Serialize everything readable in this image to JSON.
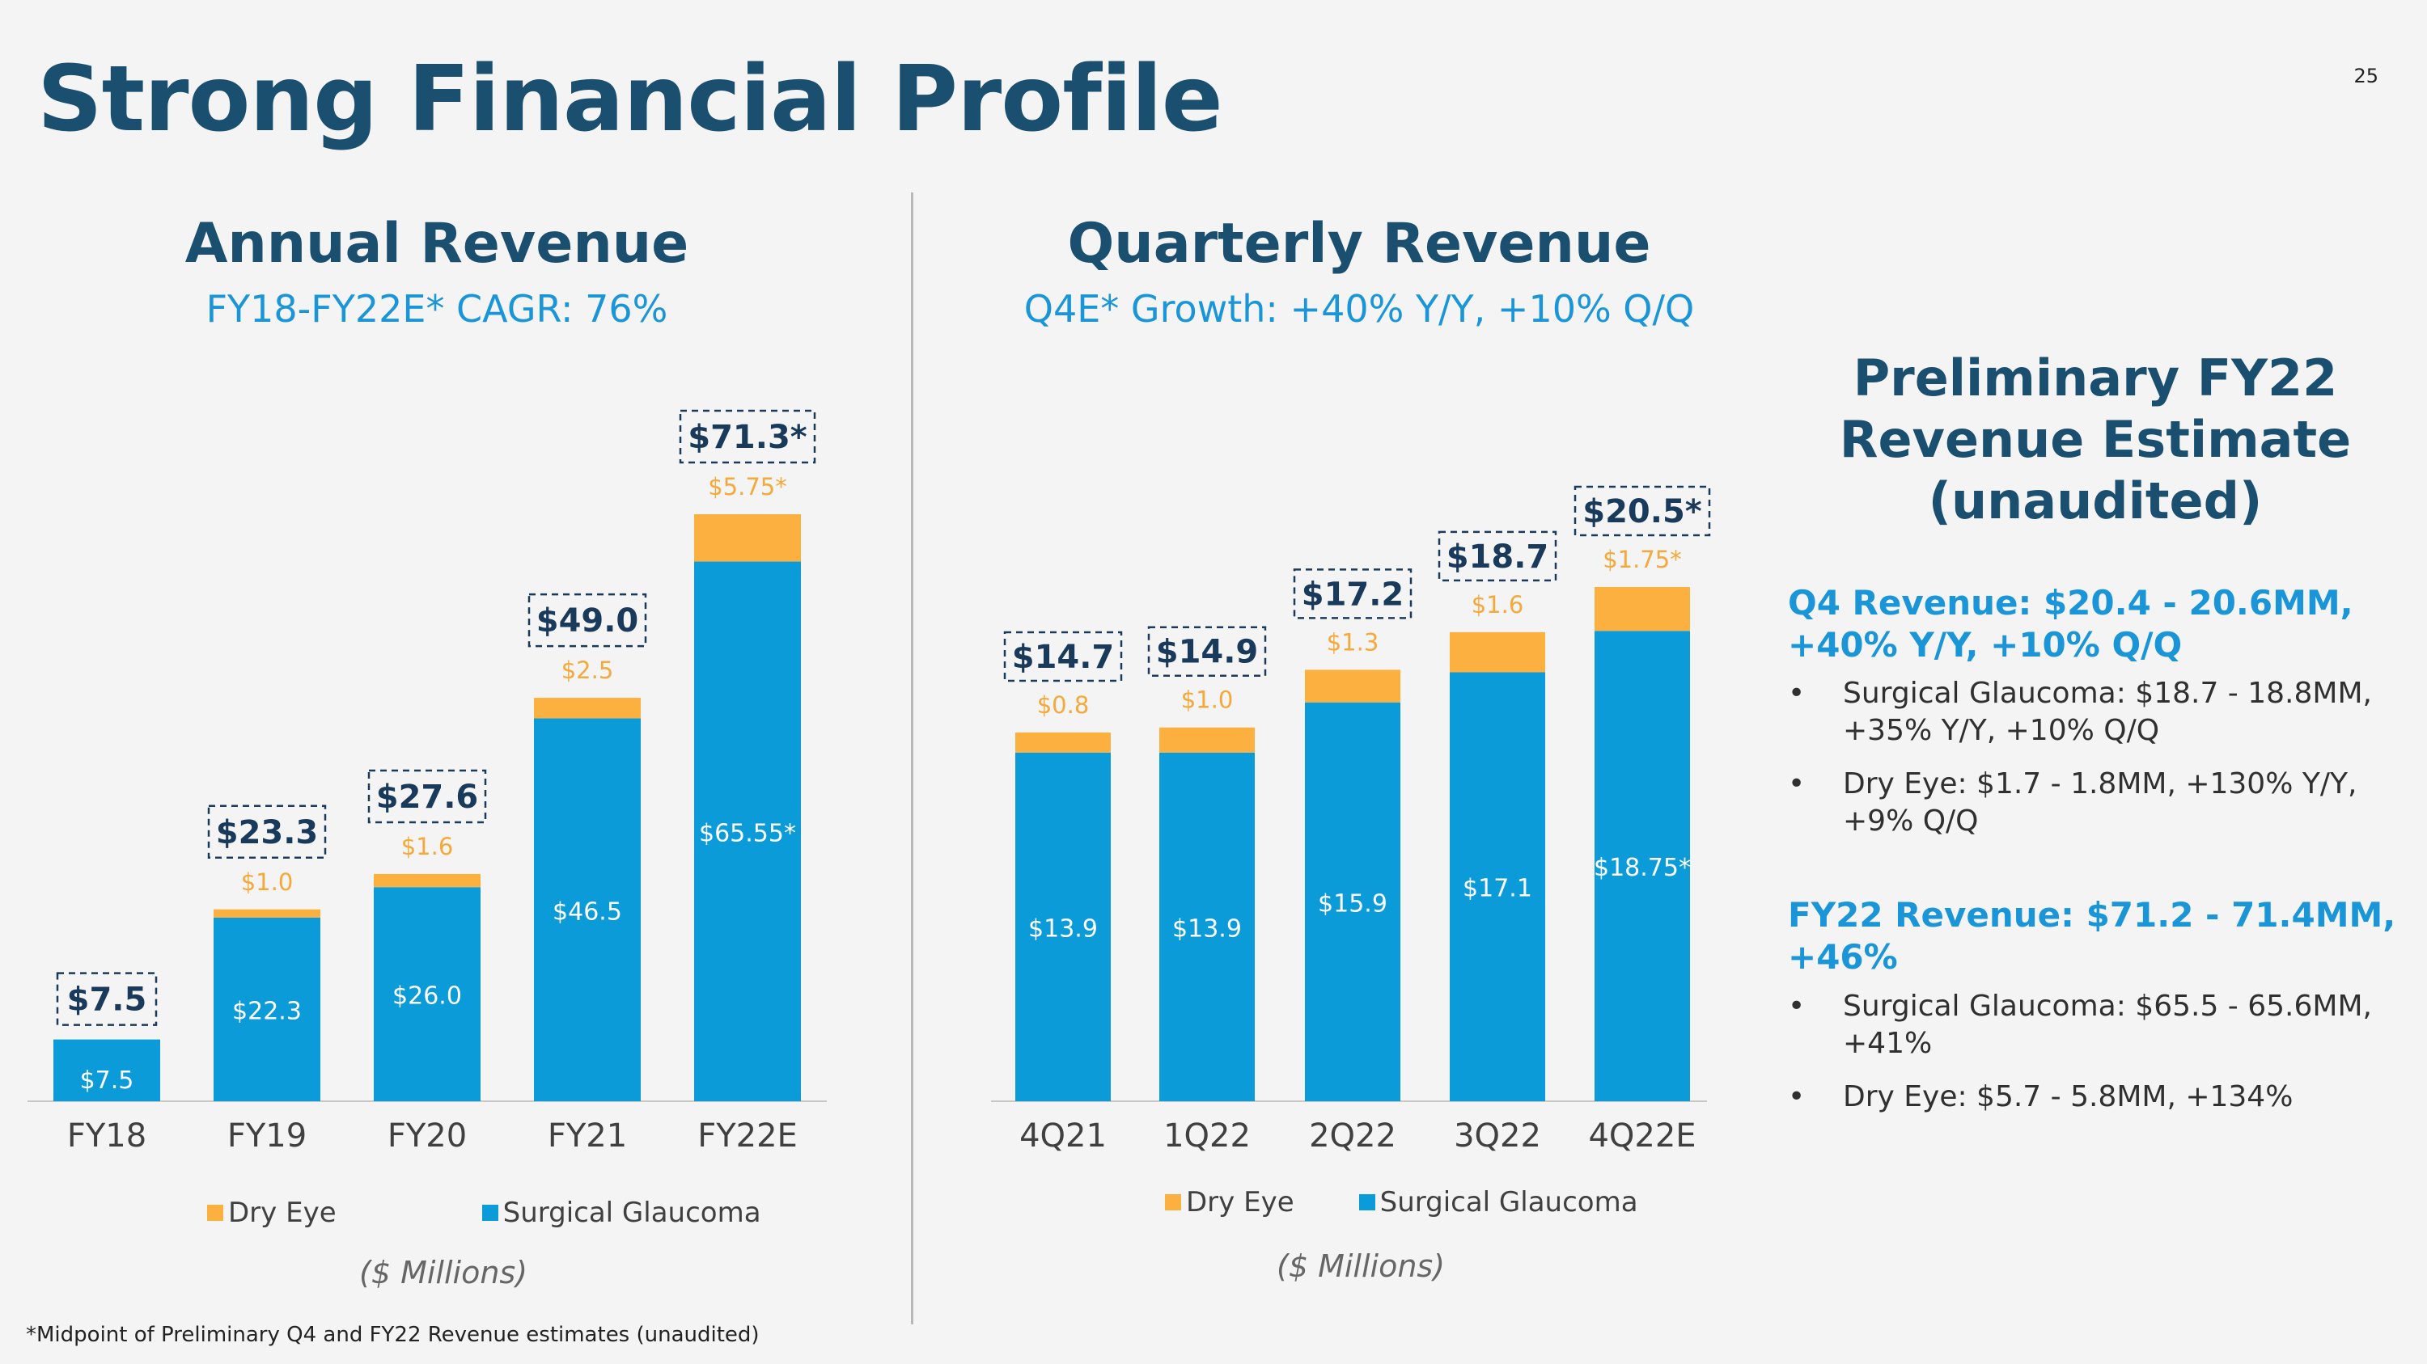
{
  "page": {
    "title": "Strong Financial Profile",
    "page_number": "25"
  },
  "annual": {
    "title": "Annual Revenue",
    "subtitle": "FY18-FY22E* CAGR: 76%",
    "units": "($ Millions)"
  },
  "quarterly": {
    "title": "Quarterly Revenue",
    "subtitle": "Q4E* Growth: +40% Y/Y, +10% Q/Q",
    "units": "($ Millions)"
  },
  "legend": {
    "dry_eye": "Dry Eye",
    "surgical_glaucoma": "Surgical Glaucoma"
  },
  "colors": {
    "dry_eye": "#fbb040",
    "surgical_glaucoma": "#0b9bd9",
    "total_label": "#1a3a5c",
    "dry_label": "#f4a93a"
  },
  "chart_data": [
    {
      "type": "bar",
      "stacked": true,
      "title": "Annual Revenue",
      "subtitle": "FY18-FY22E* CAGR: 76%",
      "categories": [
        "FY18",
        "FY19",
        "FY20",
        "FY21",
        "FY22E"
      ],
      "series": [
        {
          "name": "Surgical Glaucoma",
          "values": [
            7.5,
            22.3,
            26.0,
            46.5,
            65.55
          ],
          "labels": [
            "$7.5",
            "$22.3",
            "$26.0",
            "$46.5",
            "$65.55*"
          ]
        },
        {
          "name": "Dry Eye",
          "values": [
            0,
            1.0,
            1.6,
            2.5,
            5.75
          ],
          "labels": [
            "",
            "$1.0",
            "$1.6",
            "$2.5",
            "$5.75*"
          ]
        }
      ],
      "totals": [
        "$7.5",
        "$23.3",
        "$27.6",
        "$49.0",
        "$71.3*"
      ],
      "ylim": [
        0,
        71.3
      ],
      "units": "($ Millions)"
    },
    {
      "type": "bar",
      "stacked": true,
      "title": "Quarterly Revenue",
      "subtitle": "Q4E* Growth: +40% Y/Y, +10% Q/Q",
      "categories": [
        "4Q21",
        "1Q22",
        "2Q22",
        "3Q22",
        "4Q22E"
      ],
      "series": [
        {
          "name": "Surgical Glaucoma",
          "values": [
            13.9,
            13.9,
            15.9,
            17.1,
            18.75
          ],
          "labels": [
            "$13.9",
            "$13.9",
            "$15.9",
            "$17.1",
            "$18.75*"
          ]
        },
        {
          "name": "Dry Eye",
          "values": [
            0.8,
            1.0,
            1.3,
            1.6,
            1.75
          ],
          "labels": [
            "$0.8",
            "$1.0",
            "$1.3",
            "$1.6",
            "$1.75*"
          ]
        }
      ],
      "totals": [
        "$14.7",
        "$14.9",
        "$17.2",
        "$18.7",
        "$20.5*"
      ],
      "ylim": [
        0,
        20.5
      ],
      "units": "($ Millions)"
    }
  ],
  "side_panel": {
    "title": "Preliminary FY22 Revenue Estimate (unaudited)",
    "q4_heading": "Q4 Revenue: $20.4 - 20.6MM, +40% Y/Y, +10% Q/Q",
    "q4_bullets": [
      "Surgical Glaucoma: $18.7 - 18.8MM, +35% Y/Y, +10% Q/Q",
      "Dry Eye: $1.7 - 1.8MM, +130% Y/Y, +9% Q/Q"
    ],
    "fy_heading": "FY22 Revenue: $71.2 - 71.4MM, +46%",
    "fy_bullets": [
      "Surgical Glaucoma: $65.5 - 65.6MM, +41%",
      "Dry Eye: $5.7 - 5.8MM, +134%"
    ]
  },
  "footnote": "*Midpoint of Preliminary Q4 and FY22 Revenue estimates (unaudited)"
}
